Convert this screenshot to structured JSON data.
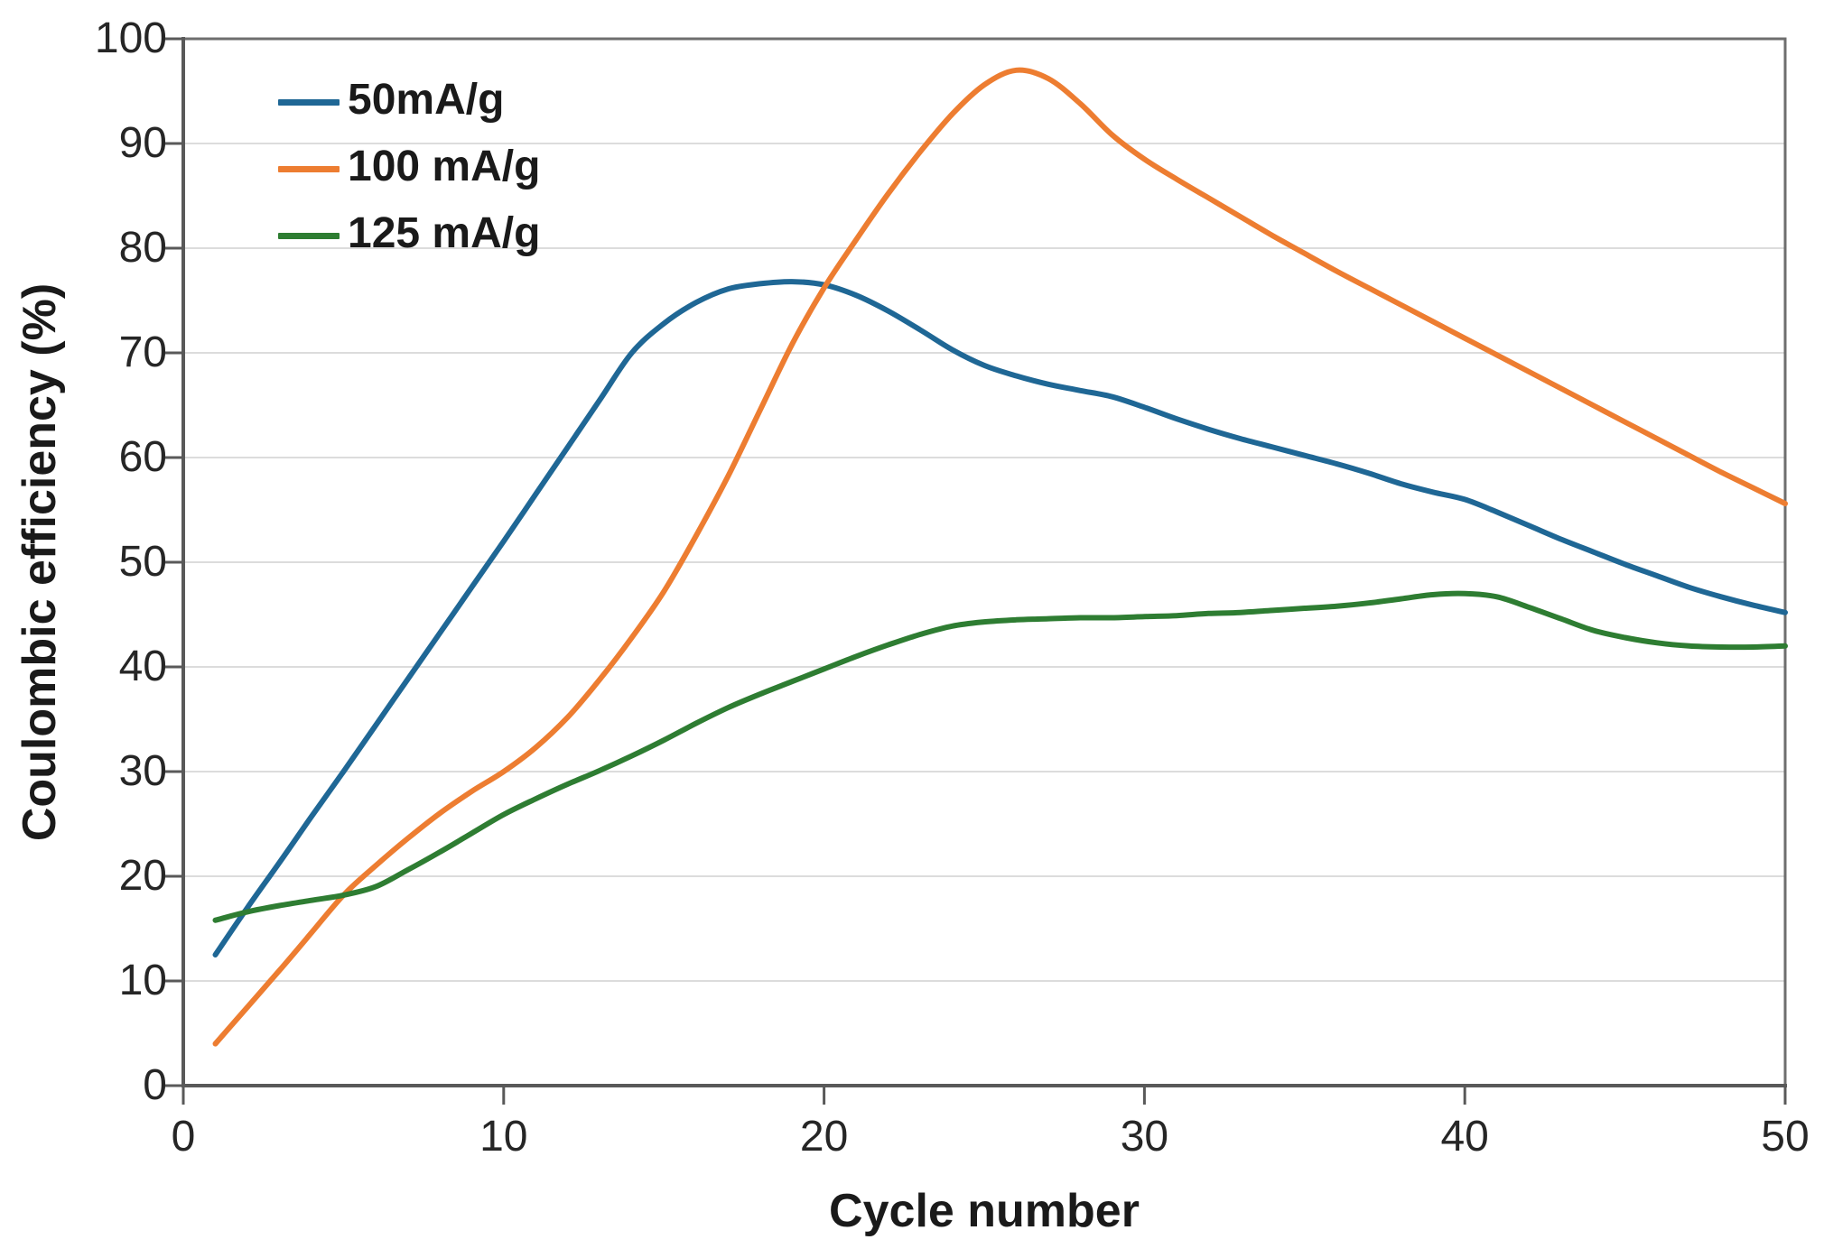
{
  "chart_data": {
    "type": "line",
    "title": "",
    "xlabel": "Cycle number",
    "ylabel": "Coulombic efficiency (%)",
    "xlim": [
      0,
      50
    ],
    "ylim": [
      0,
      100
    ],
    "x_ticks": [
      0,
      10,
      20,
      30,
      40,
      50
    ],
    "y_ticks": [
      0,
      10,
      20,
      30,
      40,
      50,
      60,
      70,
      80,
      90,
      100
    ],
    "grid": "horizontal-only",
    "grid_color": "#dcdcdc",
    "axis_color": "#595959",
    "spine_color": "#6e6e6e",
    "text_color": "#262626",
    "legend_position": "top-left-inside",
    "line_width": 6,
    "series": [
      {
        "name": "50mA/g",
        "color": "#1F6795",
        "x": [
          1,
          2,
          3,
          4,
          5,
          6,
          7,
          8,
          9,
          10,
          11,
          12,
          13,
          14,
          15,
          16,
          17,
          18,
          19,
          20,
          21,
          22,
          23,
          24,
          25,
          26,
          27,
          28,
          29,
          30,
          31,
          32,
          33,
          34,
          35,
          36,
          37,
          38,
          39,
          40,
          41,
          42,
          43,
          44,
          45,
          46,
          47,
          48,
          49,
          50
        ],
        "values": [
          12.5,
          17,
          21.3,
          25.7,
          30,
          34.4,
          38.8,
          43.2,
          47.6,
          52,
          56.5,
          61,
          65.5,
          70,
          72.8,
          74.8,
          76.1,
          76.6,
          76.8,
          76.5,
          75.5,
          74,
          72.2,
          70.3,
          68.8,
          67.8,
          67,
          66.4,
          65.8,
          64.8,
          63.7,
          62.7,
          61.8,
          61,
          60.2,
          59.4,
          58.5,
          57.5,
          56.7,
          56,
          54.8,
          53.5,
          52.2,
          51,
          49.8,
          48.7,
          47.6,
          46.7,
          45.9,
          45.2
        ]
      },
      {
        "name": "100 mA/g",
        "color": "#ED7D31",
        "x": [
          1,
          2,
          3,
          4,
          5,
          6,
          7,
          8,
          9,
          10,
          11,
          12,
          13,
          14,
          15,
          16,
          17,
          18,
          19,
          20,
          21,
          22,
          23,
          24,
          25,
          26,
          27,
          28,
          29,
          30,
          31,
          32,
          33,
          34,
          35,
          36,
          37,
          38,
          39,
          40,
          41,
          42,
          43,
          44,
          45,
          46,
          47,
          48,
          49,
          50
        ],
        "values": [
          4,
          7.5,
          11,
          14.6,
          18.2,
          21,
          23.6,
          26,
          28.1,
          30,
          32.3,
          35.2,
          38.8,
          42.8,
          47.2,
          52.5,
          58.2,
          64.5,
          70.8,
          76.2,
          80.8,
          85.2,
          89.2,
          92.8,
          95.6,
          97,
          96.2,
          93.8,
          90.8,
          88.5,
          86.6,
          84.8,
          83,
          81.2,
          79.5,
          77.8,
          76.2,
          74.6,
          73,
          71.4,
          69.8,
          68.2,
          66.6,
          65,
          63.4,
          61.8,
          60.2,
          58.6,
          57.1,
          55.6
        ]
      },
      {
        "name": "125 mA/g",
        "color": "#2E7D32",
        "x": [
          1,
          2,
          3,
          4,
          5,
          6,
          7,
          8,
          9,
          10,
          11,
          12,
          13,
          14,
          15,
          16,
          17,
          18,
          19,
          20,
          21,
          22,
          23,
          24,
          25,
          26,
          27,
          28,
          29,
          30,
          31,
          32,
          33,
          34,
          35,
          36,
          37,
          38,
          39,
          40,
          41,
          42,
          43,
          44,
          45,
          46,
          47,
          48,
          49,
          50
        ],
        "values": [
          15.8,
          16.6,
          17.2,
          17.7,
          18.2,
          19,
          20.6,
          22.3,
          24.1,
          25.9,
          27.4,
          28.8,
          30.1,
          31.5,
          33,
          34.6,
          36.1,
          37.4,
          38.6,
          39.8,
          41,
          42.1,
          43.1,
          43.9,
          44.3,
          44.5,
          44.6,
          44.7,
          44.7,
          44.8,
          44.9,
          45.1,
          45.2,
          45.4,
          45.6,
          45.8,
          46.1,
          46.5,
          46.9,
          47,
          46.7,
          45.7,
          44.6,
          43.5,
          42.8,
          42.3,
          42,
          41.9,
          41.9,
          42
        ]
      }
    ]
  }
}
